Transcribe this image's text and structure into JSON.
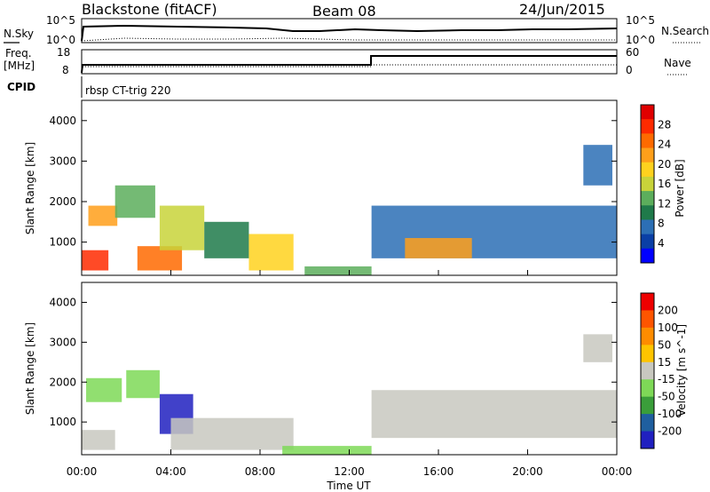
{
  "header": {
    "station": "Blackstone (fitACF)",
    "beam": "Beam 08",
    "date": "24/Jun/2015"
  },
  "top_panels": {
    "nsky_label": "N.Sky",
    "nsky_ticks": [
      "10^5",
      "10^0"
    ],
    "nsearch_label": "N.Search",
    "nsearch_ticks": [
      "10^5",
      "10^0"
    ],
    "freq_label": "Freq.",
    "freq_unit": "[MHz]",
    "freq_ticks": [
      "18",
      "8"
    ],
    "nave_label": "Nave",
    "nave_ticks": [
      "60",
      "0"
    ],
    "cpid_label": "CPID",
    "cpid_value": "rbsp CT-trig 220"
  },
  "chart_data": [
    {
      "type": "heatmap",
      "panel": "power",
      "ylabel": "Slant Range [km]",
      "xlabel": "",
      "y_ticks": [
        1000,
        2000,
        3000,
        4000
      ],
      "ylim": [
        180,
        4500
      ],
      "xlim_hours": [
        0,
        24
      ],
      "colorbar": {
        "label": "Power [dB]",
        "ticks": [
          "28",
          "24",
          "20",
          "16",
          "12",
          "8",
          "4"
        ],
        "range": [
          0,
          32
        ],
        "colors": [
          "#0000ff",
          "#0a3fa6",
          "#2c6fb5",
          "#1f7a4a",
          "#5cae5c",
          "#c8d43a",
          "#ffd21e",
          "#ff9f1a",
          "#ff6a00",
          "#ff2a00",
          "#e00000"
        ]
      },
      "regions": [
        {
          "t0": 0.0,
          "t1": 1.2,
          "r0": 300,
          "r1": 800,
          "value": 28
        },
        {
          "t0": 0.3,
          "t1": 1.6,
          "r0": 1400,
          "r1": 1900,
          "value": 22
        },
        {
          "t0": 1.5,
          "t1": 3.3,
          "r0": 1600,
          "r1": 2400,
          "value": 12
        },
        {
          "t0": 2.5,
          "t1": 4.5,
          "r0": 300,
          "r1": 900,
          "value": 26
        },
        {
          "t0": 3.5,
          "t1": 5.5,
          "r0": 800,
          "r1": 1900,
          "value": 16
        },
        {
          "t0": 5.5,
          "t1": 7.5,
          "r0": 600,
          "r1": 1500,
          "value": 10
        },
        {
          "t0": 7.5,
          "t1": 9.5,
          "r0": 300,
          "r1": 1200,
          "value": 20
        },
        {
          "t0": 10.0,
          "t1": 13.0,
          "r0": 180,
          "r1": 400,
          "value": 14
        },
        {
          "t0": 13.0,
          "t1": 24.0,
          "r0": 600,
          "r1": 1900,
          "value": 8
        },
        {
          "t0": 14.5,
          "t1": 17.5,
          "r0": 600,
          "r1": 1100,
          "value": 22
        },
        {
          "t0": 22.5,
          "t1": 23.8,
          "r0": 2400,
          "r1": 3400,
          "value": 8
        }
      ]
    },
    {
      "type": "heatmap",
      "panel": "velocity",
      "ylabel": "Slant Range [km]",
      "xlabel": "Time UT",
      "y_ticks": [
        1000,
        2000,
        3000,
        4000
      ],
      "ylim": [
        180,
        4500
      ],
      "xlim_hours": [
        0,
        24
      ],
      "x_tick_labels": [
        "00:00",
        "04:00",
        "08:00",
        "12:00",
        "16:00",
        "20:00",
        "00:00"
      ],
      "colorbar": {
        "label": "Velocity [m s^-1]",
        "ticks": [
          "200",
          "100",
          "50",
          "15",
          "-15",
          "-50",
          "-100",
          "-200"
        ],
        "range": [
          -250,
          250
        ],
        "colors": [
          "#ee0000",
          "#ff5500",
          "#ff8c00",
          "#ffc400",
          "#c8c8c0",
          "#7ed957",
          "#3a9e3a",
          "#1f5f9f",
          "#2020c0"
        ]
      },
      "regions": [
        {
          "t0": 0.0,
          "t1": 1.5,
          "r0": 300,
          "r1": 800,
          "value": 0
        },
        {
          "t0": 0.2,
          "t1": 1.8,
          "r0": 1500,
          "r1": 2100,
          "value": -60
        },
        {
          "t0": 2.0,
          "t1": 3.5,
          "r0": 1600,
          "r1": 2300,
          "value": -80
        },
        {
          "t0": 3.5,
          "t1": 5.0,
          "r0": 700,
          "r1": 1700,
          "value": -220
        },
        {
          "t0": 4.0,
          "t1": 9.5,
          "r0": 300,
          "r1": 1100,
          "value": 0
        },
        {
          "t0": 9.0,
          "t1": 13.0,
          "r0": 180,
          "r1": 400,
          "value": -40
        },
        {
          "t0": 13.0,
          "t1": 24.0,
          "r0": 600,
          "r1": 1800,
          "value": 0
        },
        {
          "t0": 22.5,
          "t1": 23.8,
          "r0": 2500,
          "r1": 3200,
          "value": 0
        }
      ]
    }
  ]
}
